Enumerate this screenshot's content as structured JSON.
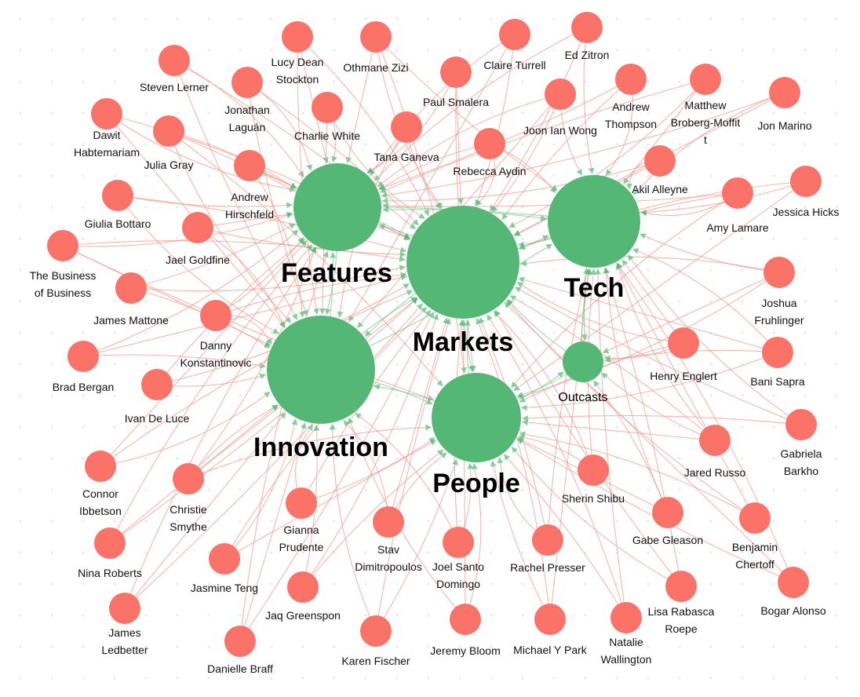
{
  "colors": {
    "person_node": "#fa7268",
    "topic_node": "#55b775",
    "edge_person": "#ee9a8a",
    "edge_topic": "#7cc38d"
  },
  "topics": [
    {
      "id": "features",
      "label": "Features"
    },
    {
      "id": "markets",
      "label": "Markets"
    },
    {
      "id": "tech",
      "label": "Tech"
    },
    {
      "id": "innovation",
      "label": "Innovation"
    },
    {
      "id": "people",
      "label": "People"
    },
    {
      "id": "outcasts",
      "label": "Outcasts"
    }
  ],
  "people": [
    {
      "id": "steven-lerner",
      "label": [
        "Steven Lerner"
      ]
    },
    {
      "id": "lucy-dean-stockton",
      "label": [
        "Lucy Dean",
        "Stockton"
      ]
    },
    {
      "id": "othmane-zizi",
      "label": [
        "Othmane Zizi"
      ]
    },
    {
      "id": "claire-turrell",
      "label": [
        "Claire Turrell"
      ]
    },
    {
      "id": "ed-zitron",
      "label": [
        "Ed Zitron"
      ]
    },
    {
      "id": "jonathan-laguan",
      "label": [
        "Jonathan",
        "Laguán"
      ]
    },
    {
      "id": "paul-smalera",
      "label": [
        "Paul Smalera"
      ]
    },
    {
      "id": "dawit-habtemariam",
      "label": [
        "Dawit",
        "Habtemariam"
      ]
    },
    {
      "id": "charlie-white",
      "label": [
        "Charlie White"
      ]
    },
    {
      "id": "joon-ian-wong",
      "label": [
        "Joon Ian Wong"
      ]
    },
    {
      "id": "andrew-thompson",
      "label": [
        "Andrew",
        "Thompson"
      ]
    },
    {
      "id": "matthew-broberg-moffitt",
      "label": [
        "Matthew",
        "Broberg-Moffit",
        "t"
      ]
    },
    {
      "id": "jon-marino",
      "label": [
        "Jon Marino"
      ]
    },
    {
      "id": "julia-gray",
      "label": [
        "Julia Gray"
      ]
    },
    {
      "id": "tana-ganeva",
      "label": [
        "Tana Ganeva"
      ]
    },
    {
      "id": "rebecca-aydin",
      "label": [
        "Rebecca Aydin"
      ]
    },
    {
      "id": "andrew-hirschfeld",
      "label": [
        "Andrew",
        "Hirschfeld"
      ]
    },
    {
      "id": "akil-alleyne",
      "label": [
        "Akil Alleyne"
      ]
    },
    {
      "id": "jessica-hicks",
      "label": [
        "Jessica Hicks"
      ]
    },
    {
      "id": "giulia-bottaro",
      "label": [
        "Giulia Bottaro"
      ]
    },
    {
      "id": "amy-lamare",
      "label": [
        "Amy Lamare"
      ]
    },
    {
      "id": "jael-goldfine",
      "label": [
        "Jael Goldfine"
      ]
    },
    {
      "id": "the-business-of-business",
      "label": [
        "The Business",
        "of Business"
      ]
    },
    {
      "id": "joshua-fruhlinger",
      "label": [
        "Joshua",
        "Fruhlinger"
      ]
    },
    {
      "id": "james-mattone",
      "label": [
        "James Mattone"
      ]
    },
    {
      "id": "danny-konstantinovic",
      "label": [
        "Danny",
        "Konstantinovic"
      ]
    },
    {
      "id": "henry-englert",
      "label": [
        "Henry Englert"
      ]
    },
    {
      "id": "bani-sapra",
      "label": [
        "Bani Sapra"
      ]
    },
    {
      "id": "brad-bergan",
      "label": [
        "Brad Bergan"
      ]
    },
    {
      "id": "ivan-de-luce",
      "label": [
        "Ivan De Luce"
      ]
    },
    {
      "id": "gabriela-barkho",
      "label": [
        "Gabriela",
        "Barkho"
      ]
    },
    {
      "id": "jared-russo",
      "label": [
        "Jared Russo"
      ]
    },
    {
      "id": "connor-ibbetson",
      "label": [
        "Connor",
        "Ibbetson"
      ]
    },
    {
      "id": "christie-smythe",
      "label": [
        "Christie",
        "Smythe"
      ]
    },
    {
      "id": "sherin-shibu",
      "label": [
        "Sherin Shibu"
      ]
    },
    {
      "id": "gianna-prudente",
      "label": [
        "Gianna",
        "Prudente"
      ]
    },
    {
      "id": "gabe-gleason",
      "label": [
        "Gabe Gleason"
      ]
    },
    {
      "id": "benjamin-chertoff",
      "label": [
        "Benjamin",
        "Chertoff"
      ]
    },
    {
      "id": "stav-dimitropoulos",
      "label": [
        "Stav",
        "Dimitropoulos"
      ]
    },
    {
      "id": "joel-santo-domingo",
      "label": [
        "Joel Santo",
        "Domingo"
      ]
    },
    {
      "id": "rachel-presser",
      "label": [
        "Rachel Presser"
      ]
    },
    {
      "id": "nina-roberts",
      "label": [
        "Nina Roberts"
      ]
    },
    {
      "id": "jasmine-teng",
      "label": [
        "Jasmine Teng"
      ]
    },
    {
      "id": "bogar-alonso",
      "label": [
        "Bogar Alonso"
      ]
    },
    {
      "id": "jaq-greenspon",
      "label": [
        "Jaq Greenspon"
      ]
    },
    {
      "id": "lisa-rabasca-roepe",
      "label": [
        "Lisa Rabasca",
        "Roepe"
      ]
    },
    {
      "id": "james-ledbetter",
      "label": [
        "James",
        "Ledbetter"
      ]
    },
    {
      "id": "jeremy-bloom",
      "label": [
        "Jeremy Bloom"
      ]
    },
    {
      "id": "michael-y-park",
      "label": [
        "Michael Y Park"
      ]
    },
    {
      "id": "natalie-wallington",
      "label": [
        "Natalie",
        "Wallington"
      ]
    },
    {
      "id": "karen-fischer",
      "label": [
        "Karen Fischer"
      ]
    },
    {
      "id": "danielle-braff",
      "label": [
        "Danielle Braff"
      ]
    }
  ]
}
